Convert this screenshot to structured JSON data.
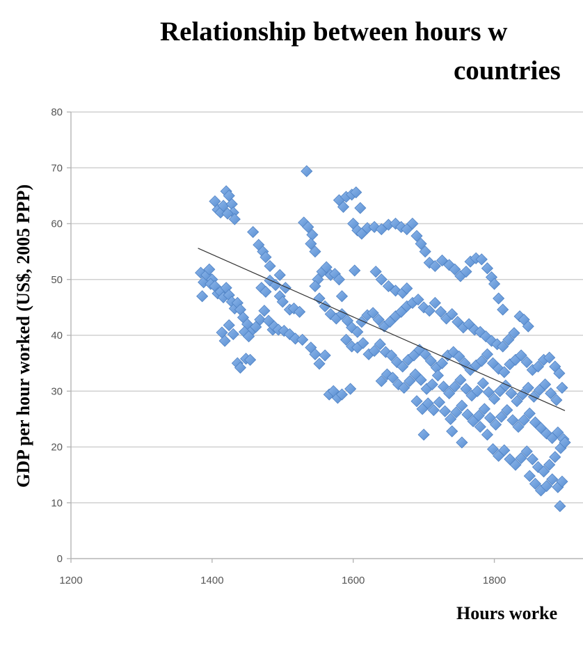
{
  "chart_data": {
    "type": "scatter",
    "title_lines": [
      "Relationship between hours w",
      "countries"
    ],
    "xlabel": "Hours worke",
    "ylabel": "GDP per hour worked (US$, 2005 PPP)",
    "xlim": [
      1200,
      1900
    ],
    "ylim": [
      0,
      80
    ],
    "x_ticks": [
      1200,
      1400,
      1600,
      1800
    ],
    "y_ticks": [
      0,
      10,
      20,
      30,
      40,
      50,
      60,
      70,
      80
    ],
    "grid": "horizontal",
    "marker": "diamond",
    "marker_color": "#6b9bd8",
    "trendline": {
      "x": [
        1380,
        1900
      ],
      "y": [
        55.6,
        26.5
      ]
    },
    "series": [
      {
        "values": [
          [
            1384,
            51.2
          ],
          [
            1388,
            49.5
          ],
          [
            1392,
            50.8
          ],
          [
            1396,
            51.8
          ],
          [
            1400,
            50.0
          ],
          [
            1386,
            47.0
          ],
          [
            1398,
            49.2
          ],
          [
            1404,
            48.8
          ],
          [
            1408,
            47.5
          ],
          [
            1412,
            47.8
          ],
          [
            1416,
            46.8
          ],
          [
            1420,
            48.5
          ],
          [
            1424,
            47.2
          ],
          [
            1428,
            46.0
          ],
          [
            1432,
            44.8
          ],
          [
            1436,
            45.8
          ],
          [
            1440,
            44.6
          ],
          [
            1444,
            43.2
          ],
          [
            1450,
            42.0
          ],
          [
            1456,
            40.8
          ],
          [
            1462,
            41.5
          ],
          [
            1468,
            42.8
          ],
          [
            1474,
            44.4
          ],
          [
            1480,
            42.6
          ],
          [
            1486,
            41.0
          ],
          [
            1414,
            40.5
          ],
          [
            1418,
            39.0
          ],
          [
            1424,
            41.8
          ],
          [
            1430,
            40.2
          ],
          [
            1446,
            40.6
          ],
          [
            1452,
            39.8
          ],
          [
            1404,
            64.0
          ],
          [
            1408,
            62.5
          ],
          [
            1412,
            62.0
          ],
          [
            1416,
            63.2
          ],
          [
            1420,
            65.8
          ],
          [
            1424,
            65.0
          ],
          [
            1428,
            63.5
          ],
          [
            1430,
            62.0
          ],
          [
            1432,
            60.8
          ],
          [
            1422,
            61.8
          ],
          [
            1436,
            35.0
          ],
          [
            1440,
            34.2
          ],
          [
            1448,
            35.8
          ],
          [
            1454,
            35.6
          ],
          [
            1458,
            58.5
          ],
          [
            1466,
            56.2
          ],
          [
            1472,
            55.0
          ],
          [
            1476,
            54.0
          ],
          [
            1482,
            52.4
          ],
          [
            1470,
            48.5
          ],
          [
            1476,
            47.8
          ],
          [
            1482,
            49.8
          ],
          [
            1490,
            49.0
          ],
          [
            1496,
            47.0
          ],
          [
            1500,
            46.0
          ],
          [
            1496,
            50.8
          ],
          [
            1504,
            48.5
          ],
          [
            1510,
            44.6
          ],
          [
            1516,
            44.8
          ],
          [
            1524,
            44.2
          ],
          [
            1488,
            41.6
          ],
          [
            1494,
            41.0
          ],
          [
            1502,
            40.8
          ],
          [
            1510,
            40.2
          ],
          [
            1518,
            39.4
          ],
          [
            1528,
            39.2
          ],
          [
            1534,
            69.4
          ],
          [
            1530,
            60.2
          ],
          [
            1536,
            59.4
          ],
          [
            1542,
            58.0
          ],
          [
            1546,
            55.0
          ],
          [
            1540,
            56.4
          ],
          [
            1550,
            50.0
          ],
          [
            1556,
            51.4
          ],
          [
            1562,
            52.2
          ],
          [
            1568,
            50.8
          ],
          [
            1574,
            51.0
          ],
          [
            1580,
            50.0
          ],
          [
            1584,
            47.0
          ],
          [
            1546,
            48.8
          ],
          [
            1552,
            46.6
          ],
          [
            1540,
            37.8
          ],
          [
            1546,
            36.6
          ],
          [
            1552,
            34.9
          ],
          [
            1560,
            36.4
          ],
          [
            1566,
            29.4
          ],
          [
            1572,
            30.0
          ],
          [
            1578,
            28.8
          ],
          [
            1584,
            29.4
          ],
          [
            1596,
            30.4
          ],
          [
            1580,
            64.2
          ],
          [
            1586,
            63.0
          ],
          [
            1590,
            64.8
          ],
          [
            1598,
            65.2
          ],
          [
            1604,
            65.6
          ],
          [
            1610,
            62.8
          ],
          [
            1600,
            60.0
          ],
          [
            1606,
            58.8
          ],
          [
            1612,
            58.2
          ],
          [
            1620,
            59.2
          ],
          [
            1630,
            59.4
          ],
          [
            1640,
            59.0
          ],
          [
            1650,
            59.8
          ],
          [
            1660,
            60.0
          ],
          [
            1668,
            59.4
          ],
          [
            1676,
            59.0
          ],
          [
            1684,
            60.0
          ],
          [
            1690,
            57.8
          ],
          [
            1696,
            56.4
          ],
          [
            1702,
            55.0
          ],
          [
            1708,
            53.0
          ],
          [
            1716,
            52.4
          ],
          [
            1726,
            53.4
          ],
          [
            1736,
            52.6
          ],
          [
            1744,
            51.8
          ],
          [
            1752,
            50.6
          ],
          [
            1760,
            51.4
          ],
          [
            1766,
            53.2
          ],
          [
            1774,
            53.8
          ],
          [
            1782,
            53.6
          ],
          [
            1790,
            52.0
          ],
          [
            1796,
            50.4
          ],
          [
            1800,
            49.2
          ],
          [
            1806,
            46.6
          ],
          [
            1812,
            44.6
          ],
          [
            1602,
            51.6
          ],
          [
            1632,
            51.4
          ],
          [
            1640,
            50.0
          ],
          [
            1650,
            48.8
          ],
          [
            1660,
            48.0
          ],
          [
            1670,
            47.6
          ],
          [
            1676,
            48.4
          ],
          [
            1560,
            45.2
          ],
          [
            1568,
            43.8
          ],
          [
            1576,
            43.0
          ],
          [
            1584,
            43.8
          ],
          [
            1592,
            42.6
          ],
          [
            1598,
            41.4
          ],
          [
            1606,
            40.6
          ],
          [
            1612,
            42.4
          ],
          [
            1620,
            43.6
          ],
          [
            1628,
            44.0
          ],
          [
            1636,
            42.8
          ],
          [
            1644,
            41.6
          ],
          [
            1652,
            42.4
          ],
          [
            1660,
            43.4
          ],
          [
            1668,
            44.2
          ],
          [
            1676,
            45.2
          ],
          [
            1684,
            45.8
          ],
          [
            1692,
            46.4
          ],
          [
            1700,
            45.0
          ],
          [
            1708,
            44.4
          ],
          [
            1716,
            45.8
          ],
          [
            1724,
            44.2
          ],
          [
            1732,
            43.0
          ],
          [
            1740,
            43.8
          ],
          [
            1748,
            42.4
          ],
          [
            1756,
            41.4
          ],
          [
            1764,
            42.0
          ],
          [
            1772,
            41.0
          ],
          [
            1780,
            40.6
          ],
          [
            1788,
            39.8
          ],
          [
            1796,
            39.0
          ],
          [
            1804,
            38.4
          ],
          [
            1812,
            38.0
          ],
          [
            1820,
            39.2
          ],
          [
            1828,
            40.4
          ],
          [
            1836,
            43.4
          ],
          [
            1842,
            42.8
          ],
          [
            1848,
            41.6
          ],
          [
            1590,
            39.2
          ],
          [
            1598,
            38.0
          ],
          [
            1606,
            37.8
          ],
          [
            1614,
            38.6
          ],
          [
            1622,
            36.6
          ],
          [
            1630,
            37.2
          ],
          [
            1638,
            38.4
          ],
          [
            1646,
            37.0
          ],
          [
            1654,
            36.4
          ],
          [
            1662,
            35.2
          ],
          [
            1670,
            34.4
          ],
          [
            1678,
            35.6
          ],
          [
            1686,
            36.4
          ],
          [
            1694,
            37.4
          ],
          [
            1702,
            36.6
          ],
          [
            1710,
            35.4
          ],
          [
            1718,
            34.2
          ],
          [
            1726,
            35.0
          ],
          [
            1734,
            36.4
          ],
          [
            1742,
            37.0
          ],
          [
            1750,
            36.2
          ],
          [
            1758,
            35.0
          ],
          [
            1766,
            33.8
          ],
          [
            1774,
            34.6
          ],
          [
            1782,
            35.4
          ],
          [
            1790,
            36.6
          ],
          [
            1798,
            35.0
          ],
          [
            1806,
            34.0
          ],
          [
            1814,
            33.4
          ],
          [
            1822,
            34.8
          ],
          [
            1830,
            35.6
          ],
          [
            1838,
            36.4
          ],
          [
            1846,
            35.2
          ],
          [
            1854,
            33.8
          ],
          [
            1862,
            34.4
          ],
          [
            1870,
            35.6
          ],
          [
            1878,
            36.0
          ],
          [
            1886,
            34.4
          ],
          [
            1892,
            33.2
          ],
          [
            1640,
            31.8
          ],
          [
            1648,
            33.0
          ],
          [
            1656,
            32.4
          ],
          [
            1664,
            31.2
          ],
          [
            1672,
            30.6
          ],
          [
            1680,
            31.8
          ],
          [
            1688,
            33.0
          ],
          [
            1696,
            32.0
          ],
          [
            1704,
            30.4
          ],
          [
            1712,
            31.2
          ],
          [
            1720,
            32.8
          ],
          [
            1728,
            30.8
          ],
          [
            1736,
            29.6
          ],
          [
            1744,
            30.8
          ],
          [
            1752,
            32.0
          ],
          [
            1760,
            30.4
          ],
          [
            1768,
            29.2
          ],
          [
            1776,
            30.0
          ],
          [
            1784,
            31.4
          ],
          [
            1792,
            29.8
          ],
          [
            1800,
            28.6
          ],
          [
            1808,
            30.0
          ],
          [
            1816,
            31.0
          ],
          [
            1824,
            29.6
          ],
          [
            1832,
            28.2
          ],
          [
            1840,
            29.4
          ],
          [
            1848,
            30.6
          ],
          [
            1856,
            29.0
          ],
          [
            1864,
            30.2
          ],
          [
            1872,
            31.2
          ],
          [
            1880,
            29.6
          ],
          [
            1888,
            28.4
          ],
          [
            1896,
            30.6
          ],
          [
            1690,
            28.2
          ],
          [
            1698,
            26.8
          ],
          [
            1706,
            27.8
          ],
          [
            1714,
            26.6
          ],
          [
            1722,
            28.0
          ],
          [
            1730,
            26.4
          ],
          [
            1738,
            25.0
          ],
          [
            1746,
            26.2
          ],
          [
            1754,
            27.4
          ],
          [
            1762,
            25.8
          ],
          [
            1770,
            24.6
          ],
          [
            1778,
            25.6
          ],
          [
            1786,
            26.8
          ],
          [
            1794,
            25.2
          ],
          [
            1802,
            24.0
          ],
          [
            1810,
            25.4
          ],
          [
            1818,
            26.6
          ],
          [
            1826,
            24.8
          ],
          [
            1834,
            23.6
          ],
          [
            1842,
            24.8
          ],
          [
            1850,
            26.0
          ],
          [
            1858,
            24.4
          ],
          [
            1866,
            23.4
          ],
          [
            1874,
            22.4
          ],
          [
            1882,
            21.6
          ],
          [
            1890,
            22.6
          ],
          [
            1898,
            21.4
          ],
          [
            1700,
            22.2
          ],
          [
            1740,
            22.8
          ],
          [
            1754,
            20.8
          ],
          [
            1780,
            23.6
          ],
          [
            1790,
            22.2
          ],
          [
            1798,
            19.6
          ],
          [
            1806,
            18.4
          ],
          [
            1814,
            19.4
          ],
          [
            1822,
            17.8
          ],
          [
            1830,
            16.8
          ],
          [
            1838,
            18.0
          ],
          [
            1846,
            19.2
          ],
          [
            1854,
            17.8
          ],
          [
            1862,
            16.4
          ],
          [
            1870,
            15.6
          ],
          [
            1878,
            16.8
          ],
          [
            1886,
            18.2
          ],
          [
            1894,
            19.8
          ],
          [
            1900,
            20.8
          ],
          [
            1850,
            14.8
          ],
          [
            1858,
            13.4
          ],
          [
            1866,
            12.2
          ],
          [
            1874,
            13.0
          ],
          [
            1882,
            14.2
          ],
          [
            1890,
            12.8
          ],
          [
            1896,
            13.8
          ],
          [
            1893,
            9.4
          ]
        ]
      }
    ]
  }
}
